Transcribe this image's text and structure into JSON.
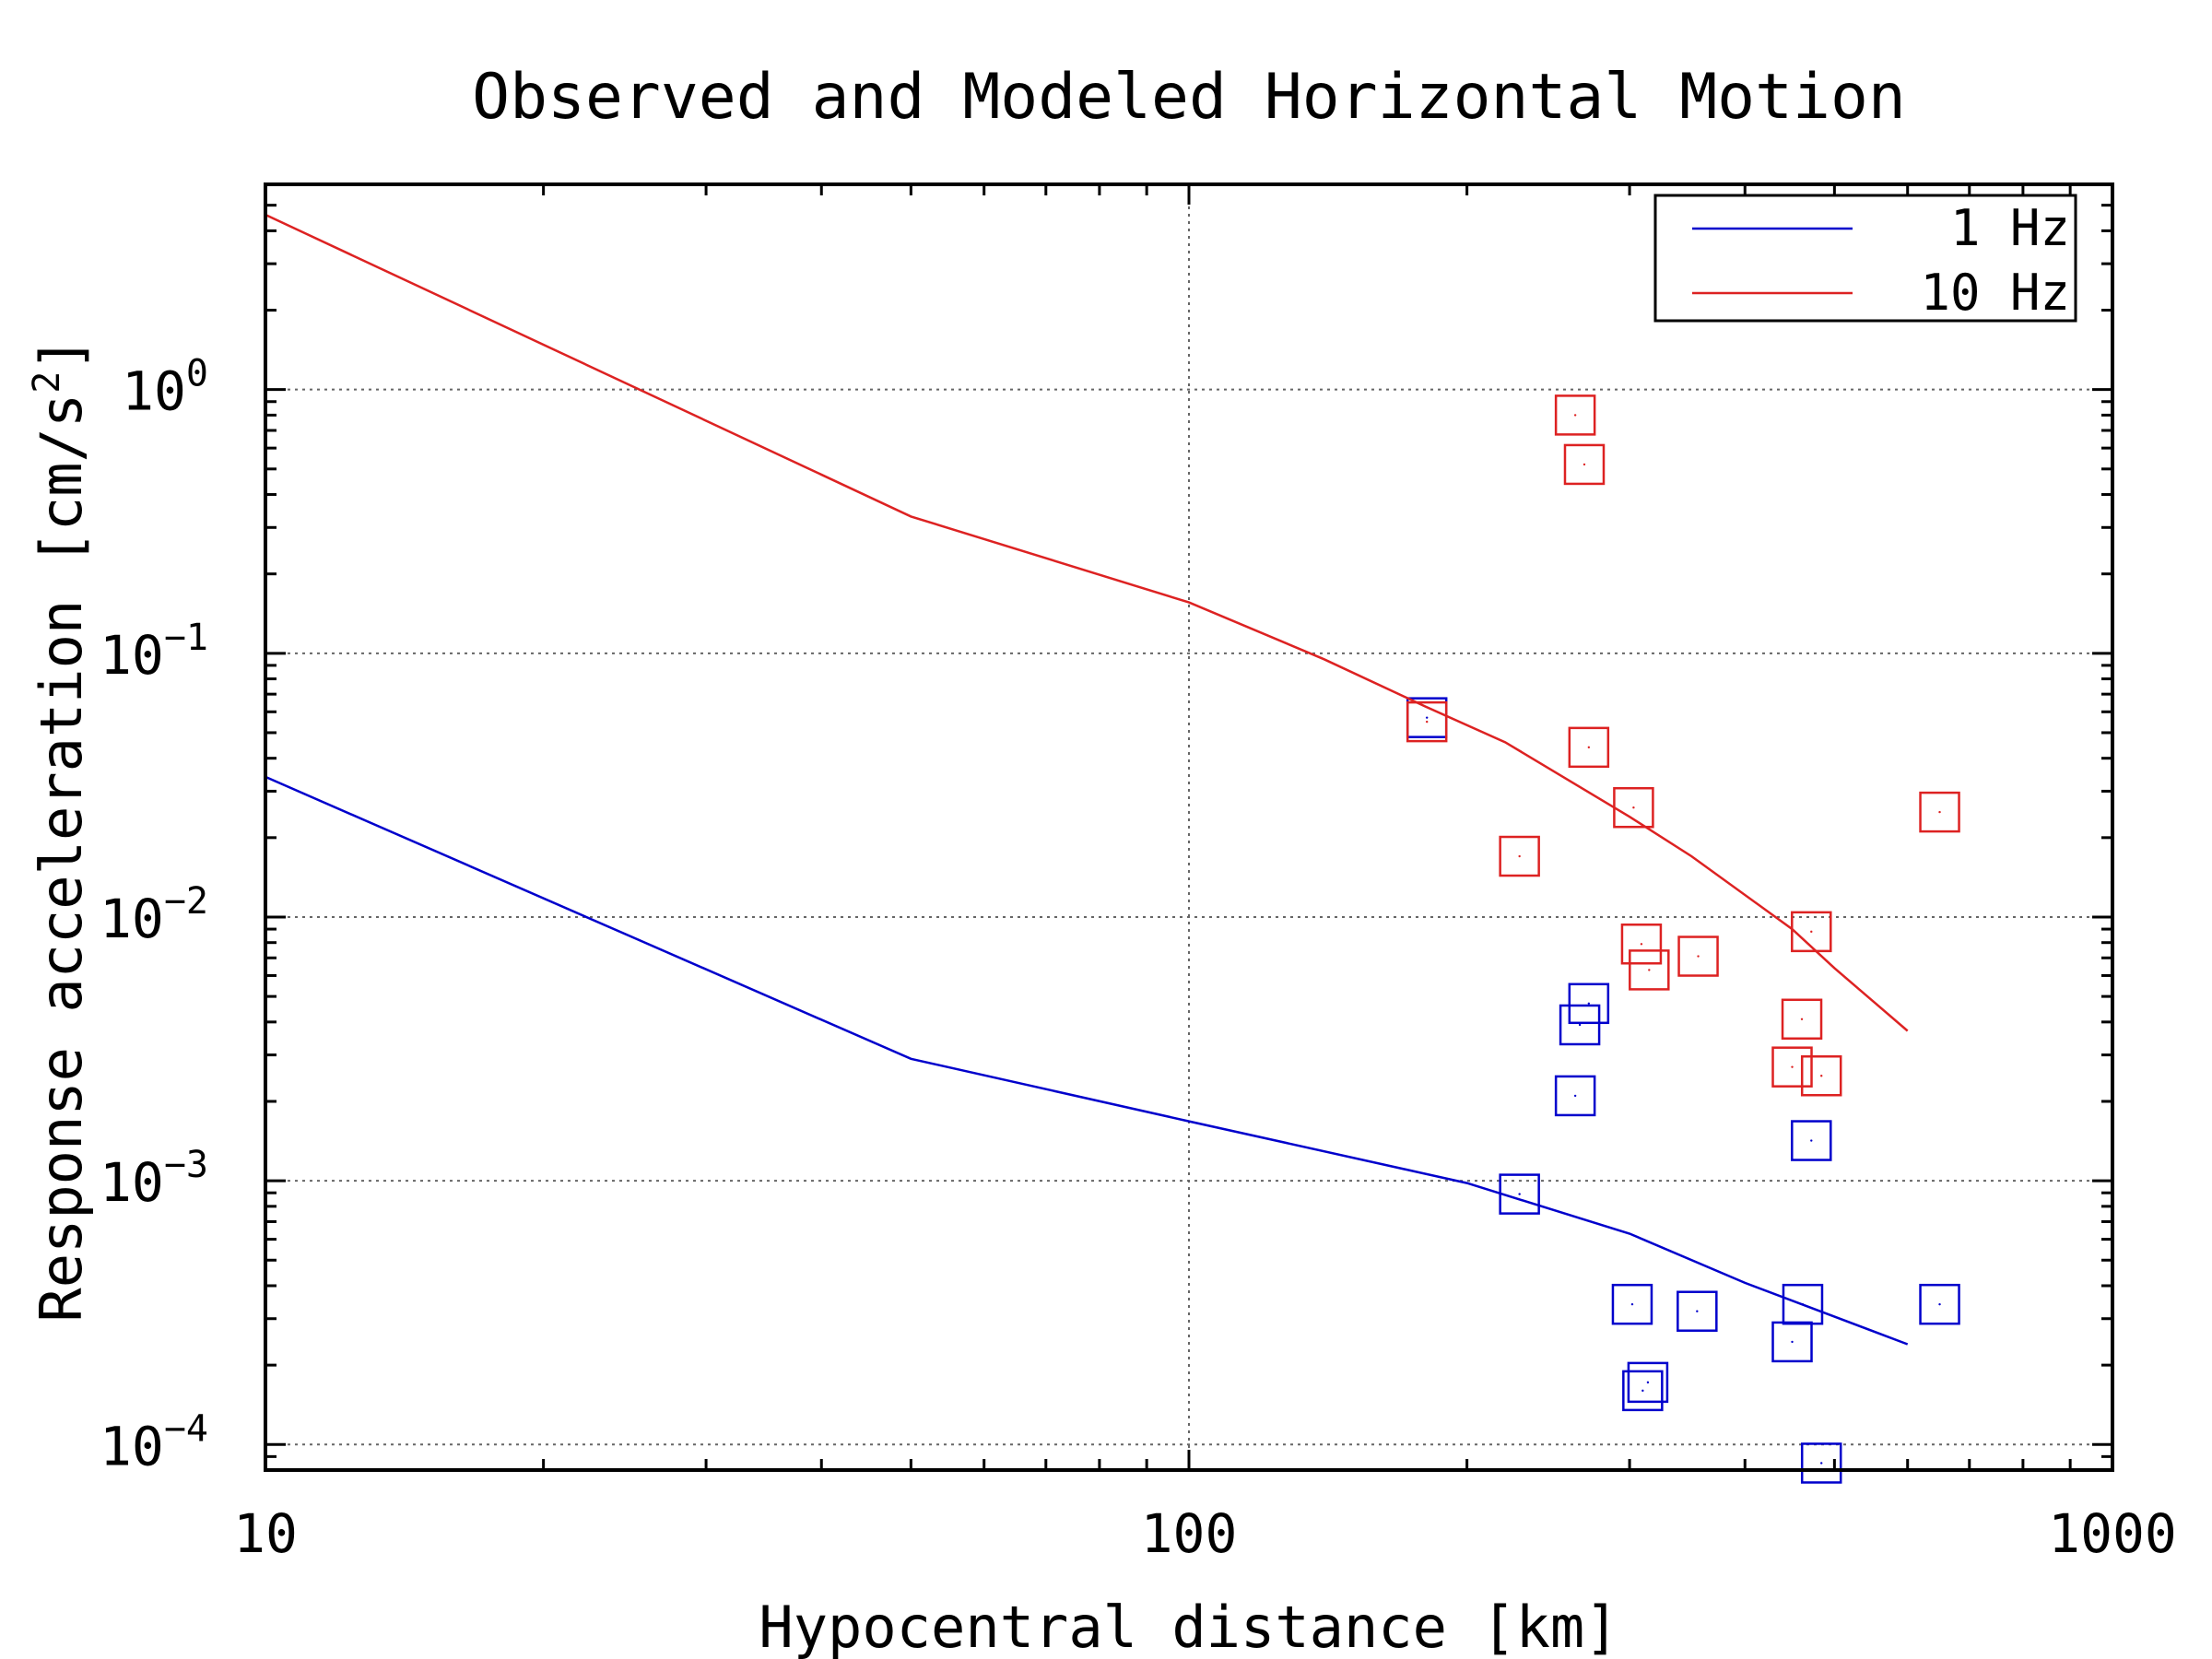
{
  "chart_data": {
    "type": "scatter",
    "title": "Observed and Modeled Horizontal Motion",
    "xlabel": "Hypocentral distance [km]",
    "ylabel": "Response acceleration [cm/s",
    "ylabel_exponent": "2",
    "ylabel_suffix": "]",
    "x_scale": "log",
    "y_scale": "log",
    "xlim": [
      10,
      1000
    ],
    "ylim": [
      8e-05,
      6
    ],
    "x_ticks": [
      {
        "value": 10,
        "label": "10"
      },
      {
        "value": 100,
        "label": "100"
      },
      {
        "value": 1000,
        "label": "1000"
      }
    ],
    "y_ticks": [
      {
        "value": 0.0001,
        "base": "10",
        "exp": "−4"
      },
      {
        "value": 0.001,
        "base": "10",
        "exp": "−3"
      },
      {
        "value": 0.01,
        "base": "10",
        "exp": "−2"
      },
      {
        "value": 0.1,
        "base": "10",
        "exp": "−1"
      },
      {
        "value": 1,
        "base": "10",
        "exp": "0"
      }
    ],
    "grid": true,
    "legend_position": "top-right",
    "series": [
      {
        "name": "1 Hz",
        "color": "#0000cc",
        "line": {
          "x": [
            10,
            50,
            100,
            200,
            300,
            400,
            600
          ],
          "y": [
            0.034,
            0.0029,
            0.00168,
            0.00098,
            0.00063,
            0.00041,
            0.00024
          ]
        },
        "points": {
          "x": [
            181,
            271,
            265,
            262,
            228,
            302,
            314,
            310,
            355,
            462,
            450,
            472,
            484,
            650
          ],
          "y": [
            0.057,
            0.0047,
            0.0039,
            0.0021,
            0.00089,
            0.00034,
            0.000172,
            0.00016,
            0.00032,
            0.00034,
            0.000245,
            0.00142,
            8.5e-05,
            0.00034
          ]
        }
      },
      {
        "name": "10 Hz",
        "color": "#dd2222",
        "line": {
          "x": [
            10,
            50,
            100,
            140,
            180,
            220,
            300,
            350,
            450,
            500,
            600
          ],
          "y": [
            4.6,
            0.33,
            0.156,
            0.095,
            0.063,
            0.046,
            0.024,
            0.017,
            0.009,
            0.0064,
            0.0037
          ]
        },
        "points": {
          "x": [
            262,
            268,
            181,
            271,
            228,
            303,
            309,
            315,
            356,
            472,
            461,
            450,
            484,
            650
          ],
          "y": [
            0.8,
            0.52,
            0.055,
            0.044,
            0.017,
            0.026,
            0.0079,
            0.0063,
            0.0071,
            0.0088,
            0.0041,
            0.0027,
            0.0025,
            0.025
          ]
        }
      }
    ]
  }
}
